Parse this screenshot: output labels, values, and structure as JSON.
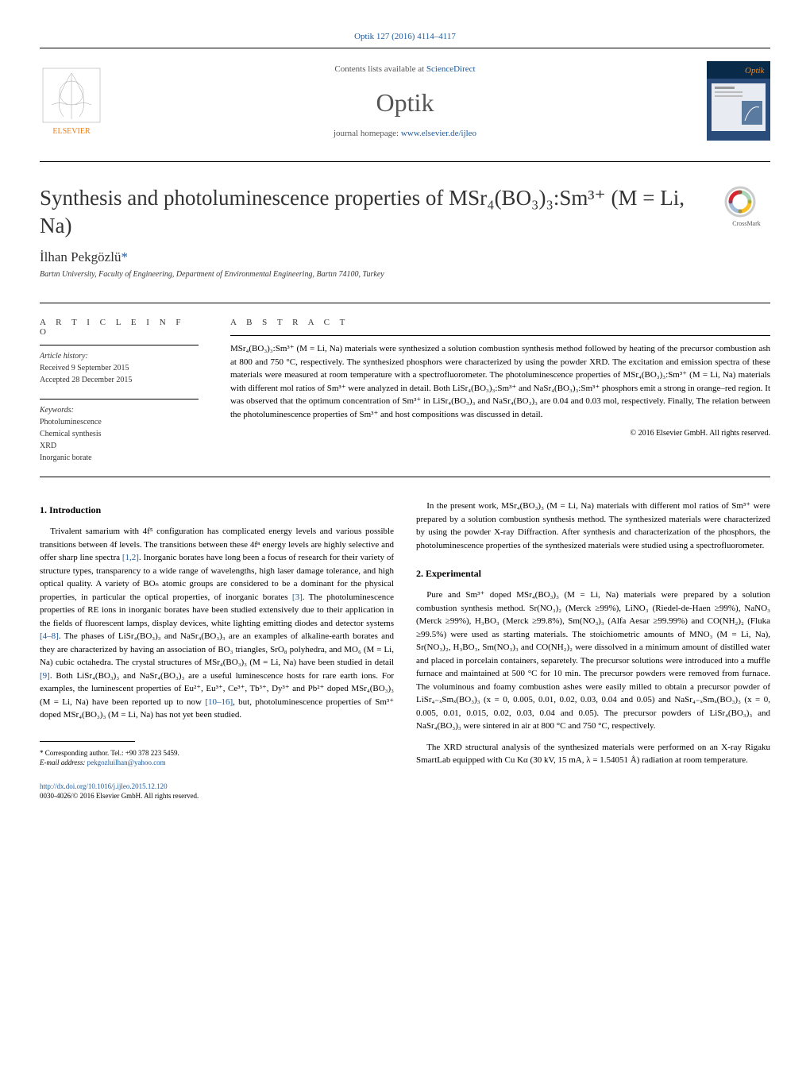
{
  "header": {
    "citation": "Optik 127 (2016) 4114–4117",
    "contents_prefix": "Contents lists available at ",
    "contents_link": "ScienceDirect",
    "journal": "Optik",
    "homepage_prefix": "journal homepage: ",
    "homepage_url": "www.elsevier.de/ijleo",
    "elsevier_label": "ELSEVIER",
    "cover_label": "Optik"
  },
  "crossmark_label": "CrossMark",
  "title_html": "Synthesis and photoluminescence properties of MSr₄(BO₃)₃:Sm³⁺ (M = Li, Na)",
  "author": {
    "name": "İlhan Pekgözlü",
    "asterisk": "*"
  },
  "affiliation": "Bartın University, Faculty of Engineering, Department of Environmental Engineering, Bartın 74100, Turkey",
  "article_info": {
    "label": "a r t i c l e   i n f o",
    "history_title": "Article history:",
    "received": "Received 9 September 2015",
    "accepted": "Accepted 28 December 2015",
    "keywords_title": "Keywords:",
    "keywords": [
      "Photoluminescence",
      "Chemical synthesis",
      "XRD",
      "Inorganic borate"
    ]
  },
  "abstract": {
    "label": "a b s t r a c t",
    "text": "MSr₄(BO₃)₃:Sm³⁺ (M = Li, Na) materials were synthesized a solution combustion synthesis method followed by heating of the precursor combustion ash at 800 and 750 °C, respectively. The synthesized phosphors were characterized by using the powder XRD. The excitation and emission spectra of these materials were measured at room temperature with a spectrofluorometer. The photoluminescence properties of MSr₄(BO₃)₃:Sm³⁺ (M = Li, Na) materials with different mol ratios of Sm³⁺ were analyzed in detail. Both LiSr₄(BO₃)₃:Sm³⁺ and NaSr₄(BO₃)₃:Sm³⁺ phosphors emit a strong in orange–red region. It was observed that the optimum concentration of Sm³⁺ in LiSr₄(BO₃)₃ and NaSr₄(BO₃)₃ are 0.04 and 0.03 mol, respectively. Finally, The relation between the photoluminescence properties of Sm³⁺ and host compositions was discussed in detail.",
    "copyright": "© 2016 Elsevier GmbH. All rights reserved."
  },
  "sections": {
    "intro_heading": "1.  Introduction",
    "intro_p1": "Trivalent samarium with 4f⁵ configuration has complicated energy levels and various possible transitions between 4f levels. The transitions between these 4fⁿ energy levels are highly selective and offer sharp line spectra [1,2]. Inorganic borates have long been a focus of research for their variety of structure types, transparency to a wide range of wavelengths, high laser damage tolerance, and high optical quality. A variety of BOₙ atomic groups are considered to be a dominant for the physical properties, in particular the optical properties, of inorganic borates [3]. The photoluminescence properties of RE ions in inorganic borates have been studied extensively due to their application in the fields of fluorescent lamps, display devices, white lighting emitting diodes and detector systems [4–8]. The phases of LiSr₄(BO₃)₃ and NaSr₄(BO₃)₃ are an examples of alkaline-earth borates and they are characterized by having an association of BO₃ triangles, SrO₈ polyhedra, and MO₆ (M = Li, Na) cubic octahedra. The crystal structures of MSr₄(BO₃)₃ (M = Li, Na) have been studied in detail [9]. Both LiSr₄(BO₃)₃ and NaSr₄(BO₃)₃ are a useful luminescence hosts for rare earth ions. For examples, the luminescent properties of Eu²⁺, Eu³⁺, Ce³⁺, Tb³⁺, Dy³⁺ and Pb²⁺ doped MSr₄(BO₃)₃ (M = Li, Na) have been reported up to now [10–16], but, photoluminescence properties of Sm³⁺ doped MSr₄(BO₃)₃ (M = Li, Na) has not yet been studied.",
    "intro_p2": "In the present work, MSr₄(BO₃)₃ (M = Li, Na) materials with different mol ratios of Sm³⁺ were prepared by a solution combustion synthesis method. The synthesized materials were characterized by using the powder X-ray Diffraction. After synthesis and characterization of the phosphors, the photoluminescence properties of the synthesized materials were studied using a spectrofluorometer.",
    "exp_heading": "2.  Experimental",
    "exp_p1": "Pure and Sm³⁺ doped MSr₄(BO₃)₃ (M = Li, Na) materials were prepared by a solution combustion synthesis method. Sr(NO₃)₂ (Merck ≥99%), LiNO₃ (Riedel-de-Haen ≥99%), NaNO₃ (Merck ≥99%), H₃BO₃ (Merck ≥99.8%), Sm(NO₃)₃ (Alfa Aesar ≥99.99%) and CO(NH₂)₂ (Fluka ≥99.5%) were used as starting materials. The stoichiometric amounts of MNO₃ (M = Li, Na), Sr(NO₃)₂, H₃BO₃, Sm(NO₃)₃ and CO(NH₂)₂ were dissolved in a minimum amount of distilled water and placed in porcelain containers, separetely. The precursor solutions were introduced into a muffle furnace and maintained at 500 °C for 10 min. The precursor powders were removed from furnace. The voluminous and foamy combustion ashes were easily milled to obtain a precursor powder of LiSr₄₋ₓSmₓ(BO₃)₃ (x = 0, 0.005, 0.01, 0.02, 0.03, 0.04 and 0.05) and NaSr₄₋ₓSmₓ(BO₃)₃ (x = 0, 0.005, 0.01, 0.015, 0.02, 0.03, 0.04 and 0.05). The precursor powders of LiSr₄(BO₃)₃ and NaSr₄(BO₃)₃ were sintered in air at 800 °C and 750 °C, respectively.",
    "exp_p2": "The XRD structural analysis of the synthesized materials were performed on an X-ray Rigaku SmartLab equipped with Cu Kα (30 kV, 15 mA, λ = 1.54051 Å) radiation at room temperature."
  },
  "footnote": {
    "corresponding": "* Corresponding author. Tel.: +90 378 223 5459.",
    "email_label": "E-mail address: ",
    "email": "pekgozluilhan@yahoo.com"
  },
  "doi": {
    "url": "http://dx.doi.org/10.1016/j.ijleo.2015.12.120",
    "issn": "0030-4026/© 2016 Elsevier GmbH. All rights reserved."
  },
  "colors": {
    "link": "#1a5a9e",
    "text_gray": "#555555",
    "elsevier_orange": "#ee7f1a",
    "cover_blue": "#2a4c7a",
    "cover_orange": "#e88a2a"
  }
}
